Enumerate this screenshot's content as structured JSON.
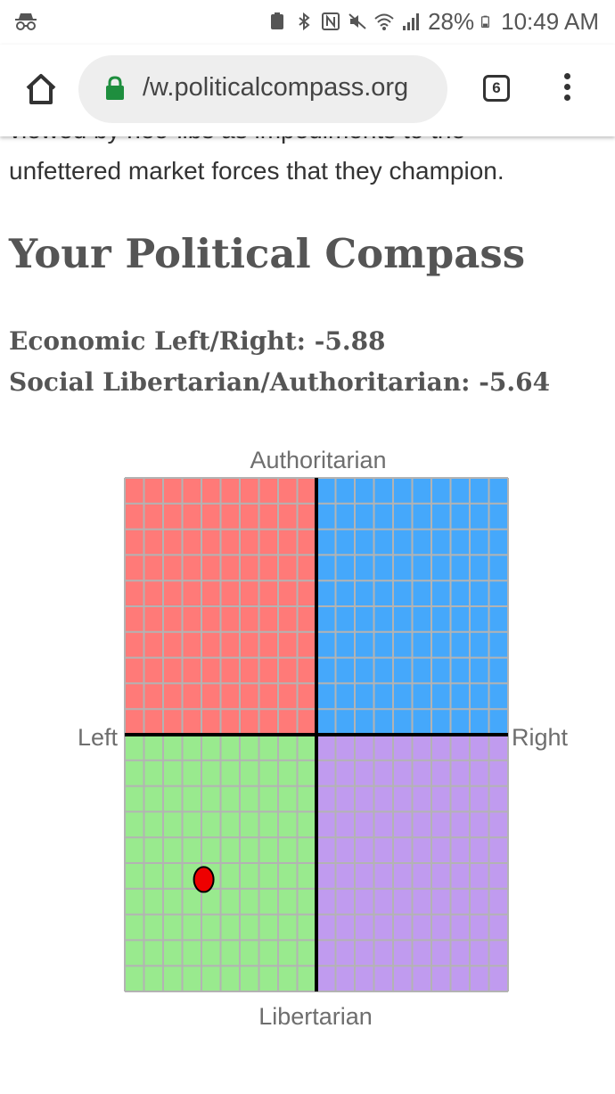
{
  "status_bar": {
    "battery": "28%",
    "time": "10:49 AM",
    "icons": [
      "incognito-icon",
      "nfc-battery-icon",
      "bluetooth-icon",
      "nfc-icon",
      "mute-icon",
      "wifi-icon",
      "signal-icon",
      "battery-icon"
    ]
  },
  "browser": {
    "url": "/w.politicalcompass.org",
    "tab_count": "6",
    "icons": [
      "home-icon",
      "lock-icon",
      "overflow-menu-icon"
    ]
  },
  "content": {
    "intro_cut": "viewed by neo-libs as impediments to the",
    "intro": "unfettered market forces that they champion.",
    "title": "Your Political Compass",
    "economic": "Economic Left/Right: -5.88",
    "social": "Social Libertarian/Authoritarian: -5.64"
  },
  "compass": {
    "labels": {
      "top": "Authoritarian",
      "bottom": "Libertarian",
      "left": "Left",
      "right": "Right"
    },
    "quadrant_colors": {
      "authoritarian_left": "#ff7a78",
      "authoritarian_right": "#45a8fb",
      "libertarian_left": "#99ea8e",
      "libertarian_right": "#c09bef"
    },
    "grid_color": "#b3b3b3",
    "axis_color": "#000000",
    "marker_color": "#ee0000",
    "range": [
      -10,
      10
    ],
    "economic_score": -5.88,
    "social_score": -5.64
  }
}
